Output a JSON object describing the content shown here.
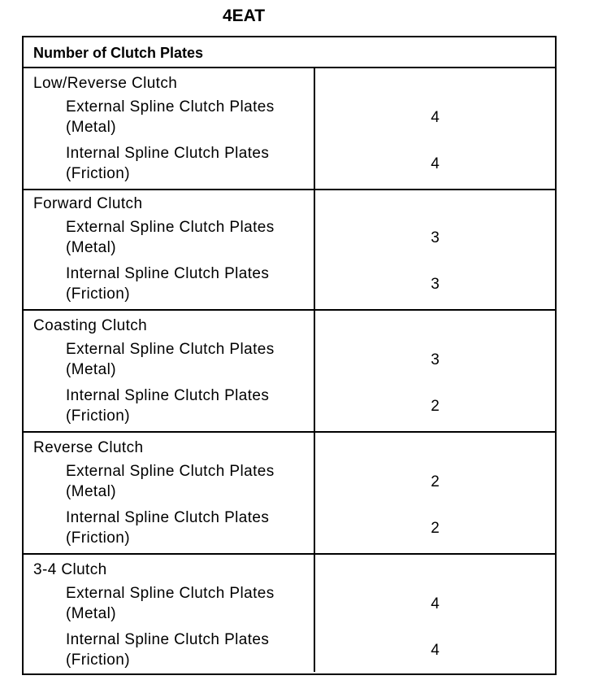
{
  "title": "4EAT",
  "table": {
    "header": "Number of Clutch Plates",
    "sections": [
      {
        "name": "Low/Reverse  Clutch",
        "rows": [
          {
            "label1": "External Spline Clutch Plates",
            "label2": "(Metal)",
            "value": "4"
          },
          {
            "label1": "Internal Spline Clutch Plates",
            "label2": "(Friction)",
            "value": "4"
          }
        ]
      },
      {
        "name": "Forward Clutch",
        "rows": [
          {
            "label1": "External Spline Clutch Plates",
            "label2": "(Metal)",
            "value": "3"
          },
          {
            "label1": "Internal Spline Clutch Plates",
            "label2": "(Friction)",
            "value": "3"
          }
        ]
      },
      {
        "name": "Coasting Clutch",
        "rows": [
          {
            "label1": "External Spline Clutch Plates",
            "label2": "(Metal)",
            "value": "3"
          },
          {
            "label1": "Internal Spline Clutch Plates",
            "label2": "(Friction)",
            "value": "2"
          }
        ]
      },
      {
        "name": "Reverse Clutch",
        "rows": [
          {
            "label1": "External Spline Clutch Plates",
            "label2": "(Metal)",
            "value": "2"
          },
          {
            "label1": "Internal Spline Clutch Plates",
            "label2": "(Friction)",
            "value": "2"
          }
        ]
      },
      {
        "name": "3-4 Clutch",
        "rows": [
          {
            "label1": "External Spline Clutch Plates",
            "label2": "(Metal)",
            "value": "4"
          },
          {
            "label1": "Internal Spline Clutch Plates",
            "label2": "(Friction)",
            "value": "4"
          }
        ]
      }
    ]
  }
}
